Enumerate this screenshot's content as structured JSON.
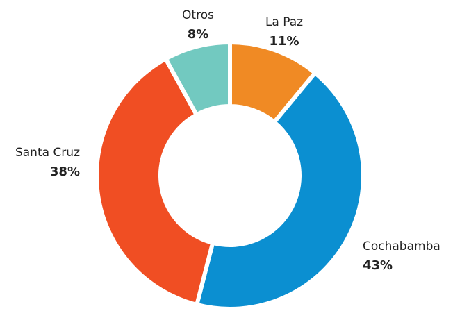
{
  "chart_data": {
    "type": "pie",
    "categories": [
      "La Paz",
      "Cochabamba",
      "Santa Cruz",
      "Otros"
    ],
    "values": [
      11,
      43,
      38,
      8
    ],
    "value_labels": [
      "11%",
      "43%",
      "38%",
      "8%"
    ],
    "colors": [
      "#f08a24",
      "#0b8fd1",
      "#f04e23",
      "#72c9c0"
    ],
    "donut": true
  }
}
